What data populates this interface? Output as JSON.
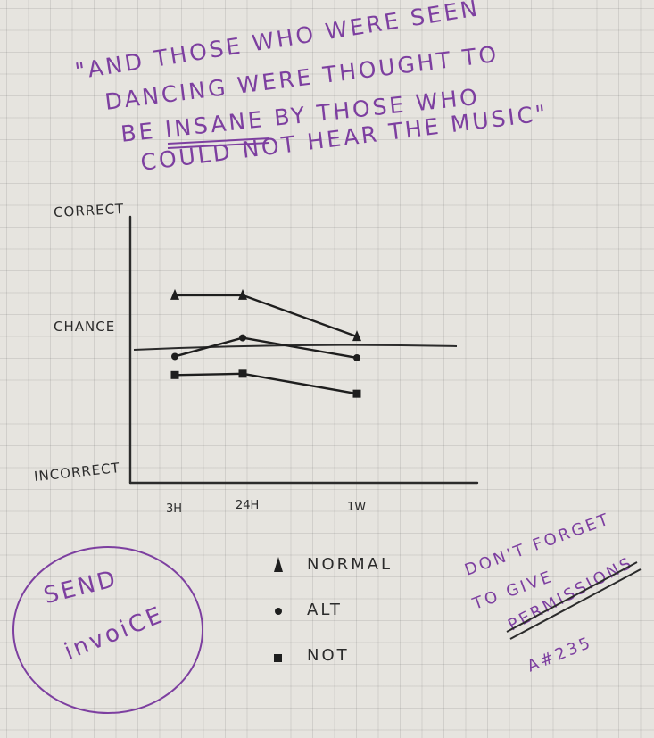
{
  "quote": {
    "lines": [
      "\"AND THOSE WHO WERE SEEN",
      "DANCING WERE THOUGHT TO",
      "BE INSANE BY THOSE WHO",
      "COULD NOT HEAR THE MUSIC\""
    ],
    "underlined_word": "INSANE",
    "color": "#7d3fa0"
  },
  "chart_data": {
    "type": "line",
    "title": "",
    "xlabel": "",
    "ylabel": "",
    "x": [
      "3H",
      "24H",
      "1W"
    ],
    "y_labels": {
      "top": "CORRECT",
      "middle": "CHANCE",
      "bottom": "INCORRECT"
    },
    "ylim": [
      -1,
      1
    ],
    "reference_line": {
      "label": "CHANCE",
      "value": 0
    },
    "series": [
      {
        "name": "NORMAL",
        "marker": "triangle",
        "values": [
          0.41,
          0.41,
          0.1
        ]
      },
      {
        "name": "ALT",
        "marker": "circle",
        "values": [
          -0.05,
          0.09,
          -0.06
        ]
      },
      {
        "name": "NOT",
        "marker": "square",
        "values": [
          -0.19,
          -0.18,
          -0.33
        ]
      }
    ],
    "legend": "bottom",
    "grid": false
  },
  "notes": {
    "send_invoice": [
      "SEND",
      "invoiCE"
    ],
    "reminder": [
      "DON'T FORGET",
      "TO GIVE",
      "PERMISSIONS",
      "A#235"
    ],
    "color": "#7d3fa0"
  }
}
